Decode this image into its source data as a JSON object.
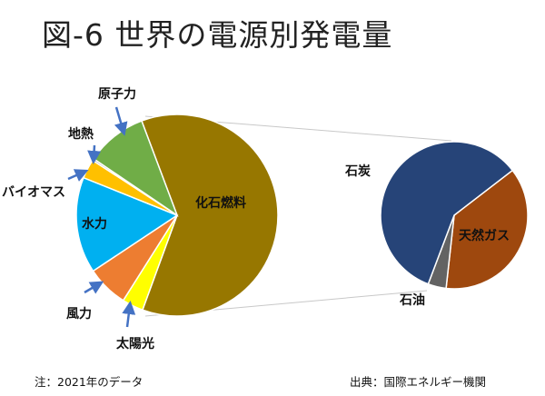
{
  "chart_data": {
    "type": "pie",
    "title": "図-6 世界の電源別発電量",
    "main_pie": {
      "slices": [
        {
          "name": "化石燃料",
          "value": 61.3,
          "color": "#977700"
        },
        {
          "name": "太陽光",
          "value": 3.4,
          "color": "#ffff00"
        },
        {
          "name": "風力",
          "value": 6.7,
          "color": "#ed7d31"
        },
        {
          "name": "水力",
          "value": 15.4,
          "color": "#00b0f0"
        },
        {
          "name": "バイオマス",
          "value": 3.1,
          "color": "#ffc000"
        },
        {
          "name": "地熱",
          "value": 0.3,
          "color": "#a5a5a5"
        },
        {
          "name": "原子力",
          "value": 9.8,
          "color": "#70ad47"
        }
      ]
    },
    "secondary_pie": {
      "parent": "化石燃料",
      "slices": [
        {
          "name": "天然ガス",
          "value": 37.2,
          "color": "#9e480e"
        },
        {
          "name": "石油",
          "value": 4.0,
          "color": "#636363"
        },
        {
          "name": "石炭",
          "value": 58.8,
          "color": "#264478"
        }
      ]
    },
    "unit": "%",
    "arrow_color": "#4472c4"
  },
  "notes": {
    "left": "注：2021年のデータ",
    "right": "出典：国際エネルギー機関"
  }
}
